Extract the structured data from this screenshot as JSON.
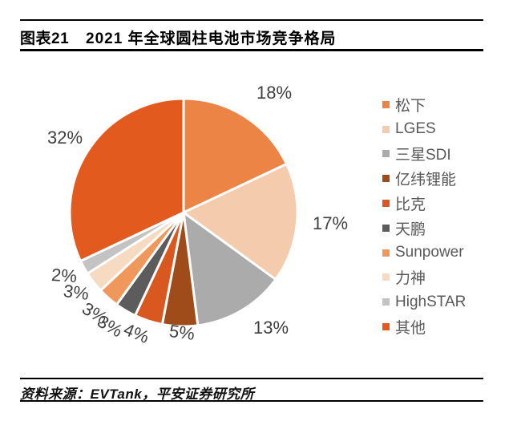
{
  "header": {
    "figure_label": "图表21",
    "title": "2021 年全球圆柱电池市场竞争格局"
  },
  "chart_data": {
    "type": "pie",
    "title": "2021年全球圆柱电池市场竞争格局",
    "direction": "clockwise",
    "start_angle_deg": 0,
    "legend_position": "right",
    "unit": "%",
    "series": [
      {
        "name": "松下",
        "value": 18,
        "label": "18%",
        "color": "#EC8445"
      },
      {
        "name": "LGES",
        "value": 17,
        "label": "17%",
        "color": "#F4CBAC"
      },
      {
        "name": "三星SDI",
        "value": 13,
        "label": "13%",
        "color": "#ABABAB"
      },
      {
        "name": "亿纬锂能",
        "value": 5,
        "label": "5%",
        "color": "#A04B1A"
      },
      {
        "name": "比克",
        "value": 4,
        "label": "4%",
        "color": "#D9581F"
      },
      {
        "name": "天鹏",
        "value": 3,
        "label": "3%",
        "color": "#5C5C5C"
      },
      {
        "name": "Sunpower",
        "value": 3,
        "label": "3%",
        "color": "#F0985C"
      },
      {
        "name": "力神",
        "value": 3,
        "label": "3%",
        "color": "#F6DAC1"
      },
      {
        "name": "HighSTAR",
        "value": 2,
        "label": "2%",
        "color": "#C3C3C3"
      },
      {
        "name": "其他",
        "value": 32,
        "label": "32%",
        "color": "#E25A1E"
      }
    ]
  },
  "footer": {
    "source": "资料来源：EVTank，平安证券研究所"
  }
}
